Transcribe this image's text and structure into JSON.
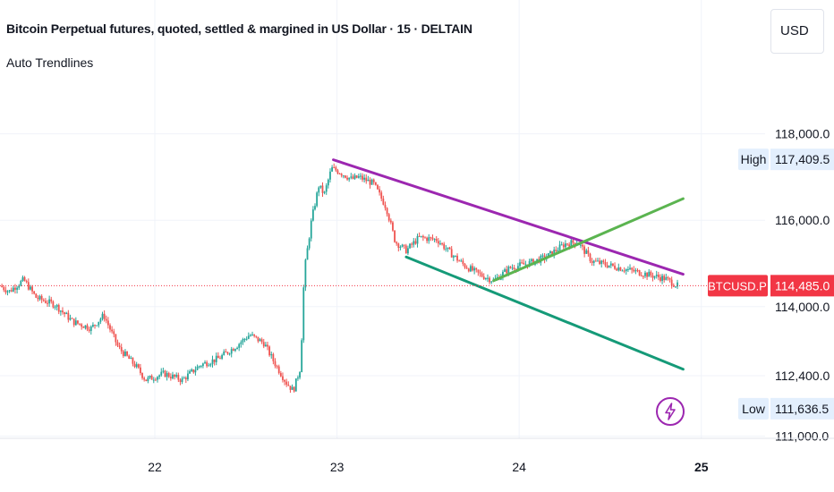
{
  "header": {
    "title": "Bitcoin Perpetual futures, quoted, settled & margined in US Dollar · 15 · DELTAIN",
    "indicator": "Auto Trendlines"
  },
  "currency_button": "USD",
  "price_scale": {
    "high_label": "High",
    "high_value": "117,409.5",
    "low_label": "Low",
    "low_value": "111,636.5",
    "symbol": "BTCUSD.P",
    "last_price": "114,485.0"
  },
  "colors": {
    "up": "#26a69a",
    "down": "#ef5350",
    "trend_upper": "#9c27b0",
    "trend_lower": "#159a78",
    "trend_support": "#5bb450",
    "last_price": "#f23645"
  },
  "icons": {
    "alert": "lightning-bolt-icon"
  },
  "chart_data": {
    "type": "candlestick",
    "title": "Bitcoin Perpetual futures, quoted, settled & margined in US Dollar · 15 · DELTAIN",
    "interval": "15",
    "x_ticks": [
      "22",
      "23",
      "24",
      "25"
    ],
    "x_tick_values": [
      22,
      23,
      24,
      25
    ],
    "y_ticks": [
      "118,000.0",
      "116,000.0",
      "114,000.0",
      "112,400.0",
      "111,000.0"
    ],
    "y_tick_values": [
      118000,
      116000,
      114000,
      112400,
      111000
    ],
    "ylim": [
      110950,
      121100
    ],
    "xlim": [
      21.15,
      25.35
    ],
    "grid": true,
    "high": 117409.5,
    "low": 111636.5,
    "last": 114485.0,
    "price_path": [
      [
        21.15,
        114480
      ],
      [
        21.2,
        114350
      ],
      [
        21.28,
        114620
      ],
      [
        21.35,
        114200
      ],
      [
        21.45,
        114050
      ],
      [
        21.55,
        113650
      ],
      [
        21.65,
        113500
      ],
      [
        21.72,
        113800
      ],
      [
        21.8,
        113050
      ],
      [
        21.9,
        112600
      ],
      [
        21.95,
        112300
      ],
      [
        22.05,
        112450
      ],
      [
        22.15,
        112300
      ],
      [
        22.25,
        112650
      ],
      [
        22.35,
        112800
      ],
      [
        22.45,
        113100
      ],
      [
        22.52,
        113350
      ],
      [
        22.6,
        113150
      ],
      [
        22.65,
        112750
      ],
      [
        22.72,
        112250
      ],
      [
        22.76,
        112050
      ],
      [
        22.8,
        112600
      ],
      [
        22.82,
        114800
      ],
      [
        22.86,
        116000
      ],
      [
        22.9,
        116800
      ],
      [
        22.93,
        116600
      ],
      [
        22.97,
        117200
      ],
      [
        23.0,
        117150
      ],
      [
        23.08,
        116950
      ],
      [
        23.12,
        117000
      ],
      [
        23.2,
        116850
      ],
      [
        23.27,
        116300
      ],
      [
        23.32,
        115500
      ],
      [
        23.38,
        115300
      ],
      [
        23.45,
        115600
      ],
      [
        23.55,
        115550
      ],
      [
        23.62,
        115250
      ],
      [
        23.7,
        114950
      ],
      [
        23.78,
        114750
      ],
      [
        23.86,
        114600
      ],
      [
        23.95,
        114900
      ],
      [
        24.05,
        115000
      ],
      [
        24.15,
        115150
      ],
      [
        24.25,
        115450
      ],
      [
        24.32,
        115500
      ],
      [
        24.4,
        115050
      ],
      [
        24.5,
        114950
      ],
      [
        24.6,
        114850
      ],
      [
        24.7,
        114750
      ],
      [
        24.8,
        114650
      ],
      [
        24.87,
        114480
      ]
    ],
    "trendlines": [
      {
        "name": "upper",
        "from": [
          22.98,
          117400
        ],
        "to": [
          24.9,
          114750
        ]
      },
      {
        "name": "lower",
        "from": [
          23.38,
          115150
        ],
        "to": [
          24.9,
          112550
        ]
      },
      {
        "name": "support",
        "from": [
          23.86,
          114600
        ],
        "to": [
          24.9,
          116500
        ]
      }
    ]
  }
}
